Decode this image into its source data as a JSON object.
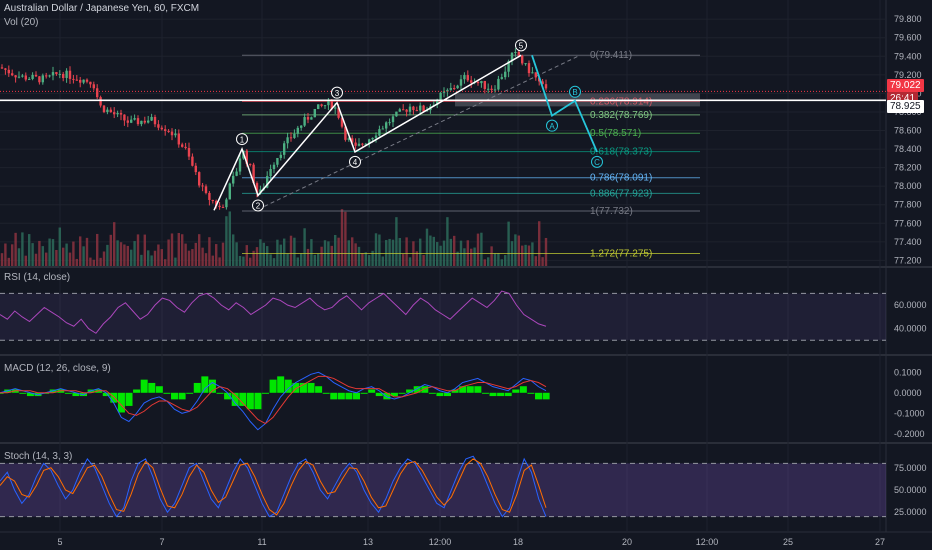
{
  "header": {
    "title": "Australian Dollar / Japanese Yen, 60, FXCM",
    "volume_label": "Vol (20)"
  },
  "price_tags": {
    "last": "79.022",
    "countdown": "26:41",
    "line": "78.925"
  },
  "chart_data": [
    {
      "type": "candlestick",
      "title": "Australian Dollar / Japanese Yen, 60, FXCM",
      "y_ticks": [
        "79.800",
        "79.600",
        "79.400",
        "79.200",
        "79.000",
        "78.800",
        "78.600",
        "78.400",
        "78.200",
        "78.000",
        "77.800",
        "77.600",
        "77.400",
        "77.200"
      ],
      "ylim": [
        77.14,
        79.92
      ],
      "x_ticks": [
        "5",
        "7",
        "11",
        "13",
        "12:00",
        "18",
        "20",
        "12:00",
        "25",
        "27"
      ],
      "grid": true,
      "horizontal_line": 78.925,
      "series": [
        {
          "role": "price_path",
          "x": [
            0,
            20,
            45,
            60,
            93,
            100,
            130,
            150,
            170,
            185,
            195,
            205,
            215,
            222,
            228,
            236,
            242,
            250,
            258,
            262,
            270,
            285,
            300,
            315,
            330,
            337,
            345,
            355,
            365,
            380,
            395,
            410,
            425,
            438,
            452,
            466,
            480,
            493,
            505,
            512,
            518,
            524,
            532,
            540,
            546
          ],
          "values": [
            79.28,
            79.18,
            79.15,
            79.22,
            79.12,
            78.86,
            78.68,
            78.72,
            78.6,
            78.4,
            78.15,
            77.9,
            77.82,
            77.74,
            77.95,
            78.15,
            78.4,
            78.2,
            77.9,
            77.95,
            78.2,
            78.45,
            78.65,
            78.82,
            78.9,
            78.82,
            78.55,
            78.4,
            78.48,
            78.62,
            78.75,
            78.86,
            78.82,
            78.95,
            79.05,
            79.18,
            79.1,
            79.05,
            79.25,
            79.4,
            79.42,
            79.3,
            79.22,
            79.1,
            79.02
          ]
        }
      ],
      "wave_labels": [
        {
          "label": "1",
          "x": 242,
          "value": 78.4
        },
        {
          "label": "2",
          "x": 258,
          "value": 77.9
        },
        {
          "label": "3",
          "x": 337,
          "value": 78.9
        },
        {
          "label": "4",
          "x": 355,
          "value": 78.37
        },
        {
          "label": "5",
          "x": 521,
          "value": 79.41
        },
        {
          "label": "A",
          "x": 552,
          "value": 78.76
        },
        {
          "label": "B",
          "x": 575,
          "value": 78.92
        },
        {
          "label": "C",
          "x": 597,
          "value": 78.37
        }
      ],
      "projection": {
        "x": [
          532,
          552,
          575,
          597
        ],
        "values": [
          79.41,
          78.76,
          78.92,
          78.37
        ]
      },
      "fibonacci": [
        {
          "label": "0(79.411)",
          "value": 79.411,
          "color": "#787b86"
        },
        {
          "label": "0.236(78.914)",
          "value": 78.914,
          "color": "#f23645"
        },
        {
          "label": "0.382(78.769)",
          "value": 78.769,
          "color": "#81c784"
        },
        {
          "label": "0.5(78.571)",
          "value": 78.571,
          "color": "#4caf50"
        },
        {
          "label": "0.618(78.373)",
          "value": 78.373,
          "color": "#089981"
        },
        {
          "label": "0.786(78.091)",
          "value": 78.091,
          "color": "#64b5f6"
        },
        {
          "label": "0.886(77.923)",
          "value": 77.923,
          "color": "#26a69a"
        },
        {
          "label": "1(77.732)",
          "value": 77.732,
          "color": "#787b86"
        },
        {
          "label": "1.272(77.275)",
          "value": 77.275,
          "color": "#c0ca33"
        }
      ]
    },
    {
      "type": "line",
      "title": "RSI (14, close)",
      "y_ticks": [
        "60.0000",
        "40.0000"
      ],
      "levels": [
        70,
        30
      ],
      "values": [
        52,
        48,
        55,
        50,
        46,
        52,
        58,
        54,
        50,
        45,
        42,
        48,
        40,
        36,
        44,
        50,
        58,
        62,
        55,
        48,
        52,
        60,
        66,
        64,
        58,
        54,
        62,
        68,
        70,
        66,
        60,
        56,
        62,
        58,
        52,
        56,
        60,
        66,
        64,
        60,
        58,
        62,
        66,
        60,
        56,
        58,
        64,
        68,
        62,
        56,
        62,
        66,
        70,
        64,
        58,
        52,
        60,
        66,
        62,
        56,
        52,
        48,
        54,
        60,
        66,
        62,
        58,
        64,
        72,
        70,
        60,
        52,
        48,
        44,
        42
      ]
    },
    {
      "type": "line",
      "title": "MACD (12, 26, close, 9)",
      "y_ticks": [
        "0.1000",
        "0.0000",
        "-0.1000",
        "-0.2000"
      ],
      "series": [
        {
          "name": "macd",
          "values": [
            0.0,
            0.01,
            0.02,
            0.01,
            0.0,
            -0.01,
            0.0,
            0.01,
            0.02,
            0.01,
            0.0,
            -0.01,
            0.01,
            0.02,
            0.0,
            -0.05,
            -0.12,
            -0.14,
            -0.1,
            -0.05,
            -0.03,
            -0.02,
            -0.04,
            -0.08,
            -0.1,
            -0.09,
            -0.04,
            0.02,
            0.05,
            0.03,
            0.0,
            -0.05,
            -0.09,
            -0.14,
            -0.18,
            -0.15,
            -0.08,
            -0.02,
            0.02,
            0.05,
            0.07,
            0.09,
            0.1,
            0.08,
            0.05,
            0.03,
            0.01,
            0.0,
            0.02,
            0.03,
            0.01,
            -0.02,
            -0.03,
            -0.02,
            0.0,
            0.02,
            0.04,
            0.03,
            0.01,
            0.0,
            0.02,
            0.05,
            0.06,
            0.07,
            0.05,
            0.03,
            0.02,
            0.01,
            0.04,
            0.07,
            0.06,
            0.03,
            0.01
          ]
        },
        {
          "name": "signal",
          "values": [
            0.0,
            0.0,
            0.01,
            0.01,
            0.01,
            0.0,
            0.0,
            0.0,
            0.01,
            0.01,
            0.01,
            0.0,
            0.0,
            0.01,
            0.01,
            -0.02,
            -0.06,
            -0.1,
            -0.11,
            -0.09,
            -0.06,
            -0.04,
            -0.04,
            -0.06,
            -0.08,
            -0.09,
            -0.07,
            -0.03,
            0.01,
            0.03,
            0.02,
            -0.01,
            -0.05,
            -0.09,
            -0.13,
            -0.15,
            -0.12,
            -0.07,
            -0.02,
            0.02,
            0.04,
            0.06,
            0.08,
            0.08,
            0.07,
            0.05,
            0.03,
            0.02,
            0.02,
            0.02,
            0.02,
            0.0,
            -0.02,
            -0.02,
            -0.01,
            0.0,
            0.02,
            0.03,
            0.02,
            0.01,
            0.01,
            0.03,
            0.04,
            0.05,
            0.05,
            0.04,
            0.03,
            0.02,
            0.03,
            0.05,
            0.06,
            0.05,
            0.03
          ]
        }
      ]
    },
    {
      "type": "line",
      "title": "Stoch (14, 3, 3)",
      "y_ticks": [
        "75.0000",
        "50.0000",
        "25.0000"
      ],
      "levels": [
        80,
        20
      ],
      "series": [
        {
          "name": "k",
          "values": [
            60,
            70,
            50,
            35,
            45,
            65,
            80,
            72,
            55,
            40,
            50,
            70,
            85,
            75,
            55,
            35,
            20,
            30,
            60,
            80,
            85,
            65,
            40,
            25,
            35,
            55,
            75,
            80,
            60,
            40,
            30,
            50,
            70,
            85,
            75,
            55,
            35,
            20,
            25,
            45,
            65,
            80,
            85,
            70,
            50,
            40,
            55,
            70,
            80,
            70,
            50,
            35,
            25,
            40,
            60,
            75,
            85,
            80,
            65,
            50,
            35,
            30,
            50,
            70,
            85,
            88,
            75,
            55,
            35,
            20,
            30,
            60,
            85,
            70,
            40,
            20
          ]
        },
        {
          "name": "d",
          "values": [
            55,
            65,
            60,
            45,
            42,
            55,
            72,
            75,
            65,
            50,
            46,
            60,
            75,
            78,
            65,
            45,
            28,
            26,
            45,
            68,
            82,
            75,
            52,
            32,
            30,
            45,
            65,
            78,
            70,
            50,
            36,
            42,
            60,
            78,
            80,
            65,
            45,
            28,
            22,
            35,
            55,
            72,
            82,
            78,
            60,
            46,
            48,
            62,
            75,
            74,
            60,
            42,
            30,
            32,
            50,
            68,
            80,
            82,
            72,
            57,
            42,
            33,
            42,
            60,
            78,
            85,
            80,
            65,
            45,
            28,
            25,
            45,
            72,
            78,
            55,
            30
          ]
        }
      ]
    }
  ]
}
